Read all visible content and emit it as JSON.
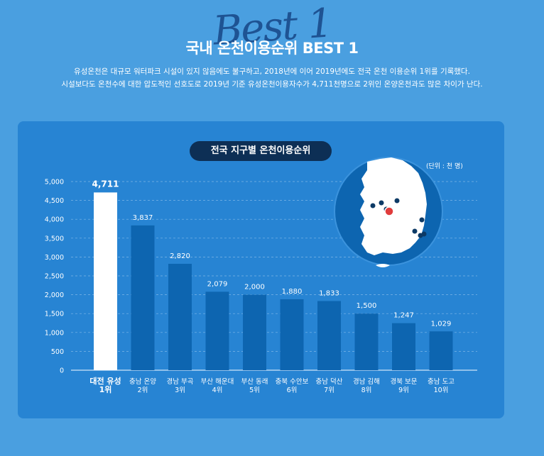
{
  "header": {
    "deco_text": "Best 1",
    "title": "국내 온천이용순위 BEST 1",
    "desc_line1": "유성온천은 대규모 워터파크 시설이 있지 않음에도 불구하고, 2018년에 이어 2019년에도 전국 온천 이용순위 1위를 기록했다.",
    "desc_line2": "시설보다도 온천수에 대한 압도적인 선호도로 2019년 기준 유성온천이용자수가 4,711천명으로 2위인 온양온천과도 많은 차이가 난다."
  },
  "chart_data": {
    "type": "bar",
    "title": "전국 지구별 온천이용순위",
    "unit_label": "(단위 : 천 명)",
    "categories": [
      [
        "대전 유성",
        "1위"
      ],
      [
        "충남 온양",
        "2위"
      ],
      [
        "경남 부곡",
        "3위"
      ],
      [
        "부산 해운대",
        "4위"
      ],
      [
        "부산 동래",
        "5위"
      ],
      [
        "충북 수안보",
        "6위"
      ],
      [
        "충남 덕산",
        "7위"
      ],
      [
        "경남 김해",
        "8위"
      ],
      [
        "경북 보문",
        "9위"
      ],
      [
        "충남 도고",
        "10위"
      ]
    ],
    "values": [
      4711,
      3837,
      2820,
      2079,
      2000,
      1880,
      1833,
      1500,
      1247,
      1029
    ],
    "value_labels": [
      "4,711",
      "3,837",
      "2,820",
      "2,079",
      "2,000",
      "1,880",
      "1,833",
      "1,500",
      "1,247",
      "1,029"
    ],
    "yticks": [
      0,
      500,
      1000,
      1500,
      2000,
      2500,
      3000,
      3500,
      4000,
      4500,
      5000
    ],
    "ytick_labels": [
      "0",
      "500",
      "1,000",
      "1,500",
      "2,000",
      "2,500",
      "3,000",
      "3,500",
      "4,000",
      "4,500",
      "5,000"
    ],
    "ylim": [
      0,
      5000
    ],
    "grid": true,
    "highlight_index": 0,
    "colors": {
      "bar": "#0d65b0",
      "highlight": "#ffffff",
      "grid": "#7fb7e8"
    }
  },
  "map": {
    "label": "korea-map",
    "colors": {
      "circle": "#0d65b0",
      "land": "#ffffff",
      "marker": "#0d3a66",
      "highlight": "#e03c3c"
    }
  }
}
